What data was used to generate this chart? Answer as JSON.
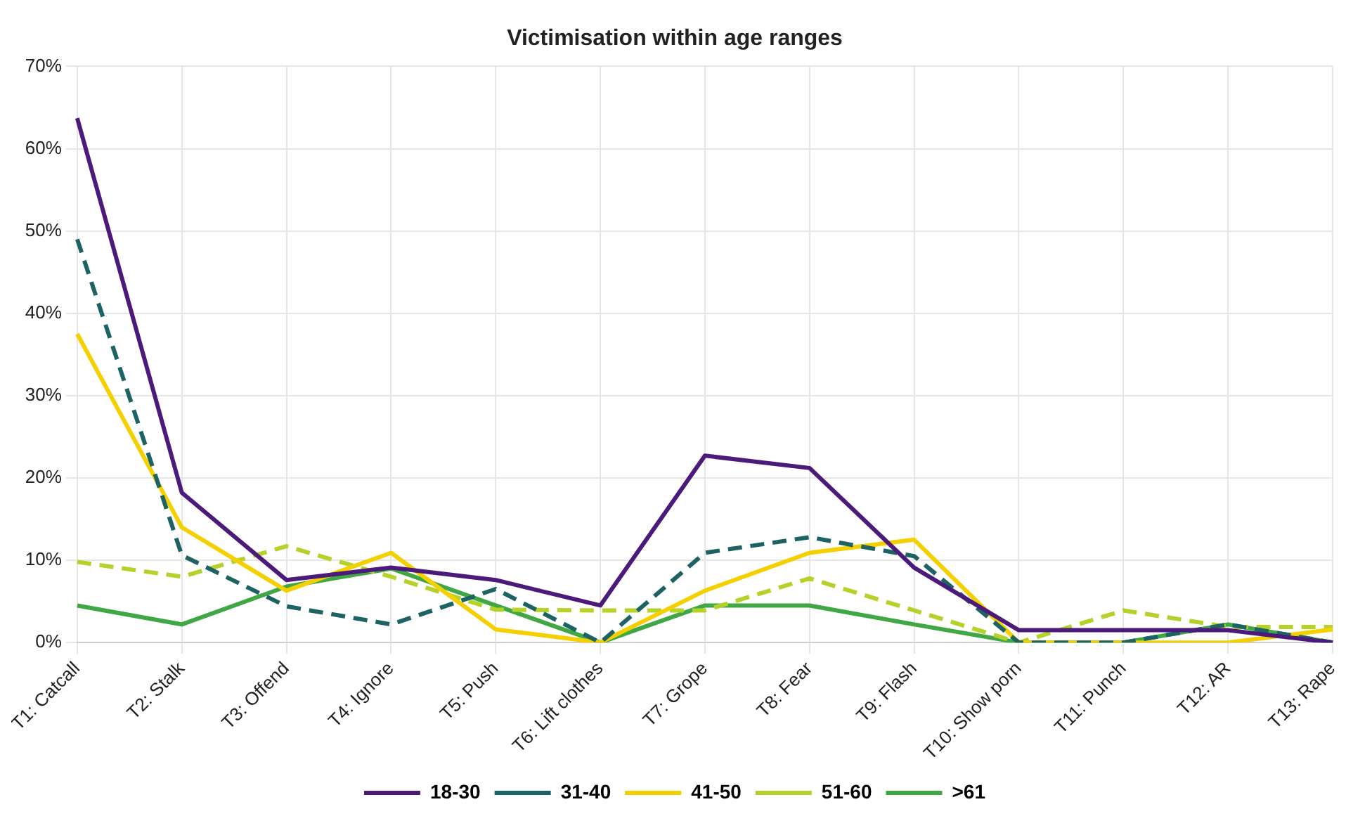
{
  "chart_data": {
    "type": "line",
    "title": "Victimisation within age ranges",
    "categories": [
      "T1: Catcall",
      "T2: Stalk",
      "T3: Offend",
      "T4: Ignore",
      "T5: Push",
      "T6: Lift clothes",
      "T7: Grope",
      "T8: Fear",
      "T9: Flash",
      "T10: Show porn",
      "T11: Punch",
      "T12: AR",
      "T13: Rape"
    ],
    "series": [
      {
        "name": "18-30",
        "color": "#4b1a7a",
        "line_style": "solid",
        "values": [
          63.7,
          18.2,
          7.6,
          9.1,
          7.6,
          4.5,
          22.7,
          21.2,
          9.1,
          1.5,
          1.5,
          1.5,
          0
        ]
      },
      {
        "name": "31-40",
        "color": "#1d6363",
        "line_style": "dashed",
        "values": [
          49,
          10.6,
          4.4,
          2.2,
          6.5,
          0,
          10.9,
          12.8,
          10.5,
          0,
          0,
          2.2,
          0
        ]
      },
      {
        "name": "41-50",
        "color": "#f5d000",
        "line_style": "solid",
        "values": [
          37.5,
          14,
          6.3,
          10.9,
          1.6,
          0,
          6.3,
          10.9,
          12.5,
          0,
          0,
          0,
          1.6
        ]
      },
      {
        "name": "51-60",
        "color": "#b5d22a",
        "line_style": "dashed",
        "values": [
          9.8,
          8,
          11.7,
          8,
          4,
          3.9,
          3.9,
          7.8,
          3.9,
          0,
          3.9,
          1.9,
          1.9
        ]
      },
      {
        "name": ">61",
        "color": "#3fa845",
        "line_style": "solid",
        "values": [
          4.5,
          2.2,
          6.8,
          9,
          4.5,
          0,
          4.5,
          4.5,
          2.2,
          0,
          0,
          2.2,
          0
        ]
      }
    ],
    "ylim": [
      0,
      70
    ],
    "yticks": [
      {
        "value": 0,
        "label": "0%"
      },
      {
        "value": 10,
        "label": "10%"
      },
      {
        "value": 20,
        "label": "20%"
      },
      {
        "value": 30,
        "label": "30%"
      },
      {
        "value": 40,
        "label": "40%"
      },
      {
        "value": 50,
        "label": "50%"
      },
      {
        "value": 60,
        "label": "60%"
      },
      {
        "value": 70,
        "label": "70%"
      }
    ],
    "grid": true,
    "legend": "bottom",
    "marker": "none"
  }
}
